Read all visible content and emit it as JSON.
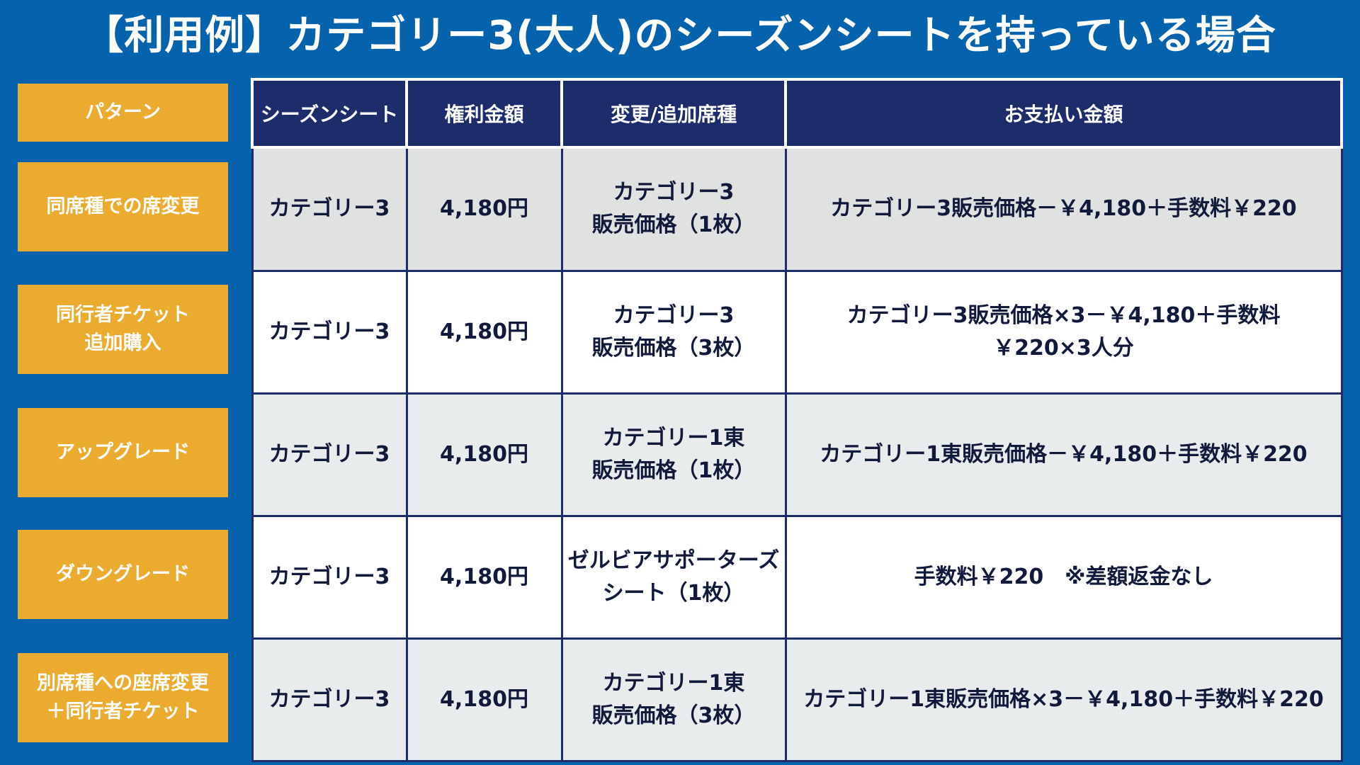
{
  "title": "【利用例】カテゴリー3(大人)のシーズンシートを持っている場合",
  "colors": {
    "background": "#0563ad",
    "pattern": "#ebab2f",
    "header": "#1d2d6b"
  },
  "pattern_header": "パターン",
  "headers": [
    "シーズンシート",
    "権利金額",
    "変更/追加席種",
    "お支払い金額"
  ],
  "rows": [
    {
      "pattern": "同席種での席変更",
      "season": "カテゴリー3",
      "right": "4,180円",
      "change": "カテゴリー3\n販売価格（1枚）",
      "pay": "カテゴリー3販売価格－￥4,180＋手数料￥220"
    },
    {
      "pattern": "同行者チケット\n追加購入",
      "season": "カテゴリー3",
      "right": "4,180円",
      "change": "カテゴリー3\n販売価格（3枚）",
      "pay": "カテゴリー3販売価格×3－￥4,180＋手数料\n￥220×3人分"
    },
    {
      "pattern": "アップグレード",
      "season": "カテゴリー3",
      "right": "4,180円",
      "change": "カテゴリー1東\n販売価格（1枚）",
      "pay": "カテゴリー1東販売価格－￥4,180＋手数料￥220"
    },
    {
      "pattern": "ダウングレード",
      "season": "カテゴリー3",
      "right": "4,180円",
      "change": "ゼルビアサポーターズ\nシート（1枚）",
      "pay": "手数料￥220　※差額返金なし"
    },
    {
      "pattern": "別席種への座席変更\n＋同行者チケット",
      "season": "カテゴリー3",
      "right": "4,180円",
      "change": "カテゴリー1東\n販売価格（3枚）",
      "pay": "カテゴリー1東販売価格×3－￥4,180＋手数料￥220"
    }
  ]
}
